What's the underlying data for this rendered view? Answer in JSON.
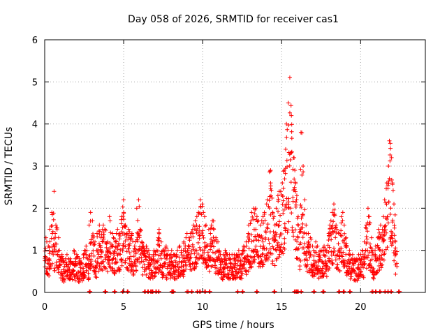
{
  "chart_data": {
    "type": "scatter",
    "title": "Day 058 of 2026, SRMTID for receiver cas1",
    "xlabel": "GPS time / hours",
    "ylabel": "SRMTID / TECUs",
    "xlim": [
      0,
      24.1
    ],
    "ylim": [
      0,
      6
    ],
    "x_ticks": [
      0,
      5,
      10,
      15,
      20
    ],
    "x_tick_labels": [
      "0",
      "5",
      "10",
      "15",
      "20"
    ],
    "y_ticks": [
      0,
      1,
      2,
      3,
      4,
      5,
      6
    ],
    "y_tick_labels": [
      "0",
      "1",
      "2",
      "3",
      "4",
      "5",
      "6"
    ],
    "grid": true,
    "marker": "+",
    "series_color": "#ff0000",
    "series": [
      {
        "name": "cas1",
        "hour_start": 0.0,
        "hour_step": 0.1,
        "envelope": [
          1.3,
          1.2,
          1.1,
          1.5,
          1.9,
          2.4,
          1.4,
          1.6,
          1.3,
          1.0,
          0.9,
          0.8,
          0.7,
          0.8,
          0.9,
          0.8,
          0.8,
          0.7,
          1.0,
          0.8,
          0.9,
          0.7,
          0.8,
          0.7,
          0.9,
          1.0,
          1.1,
          0.8,
          1.6,
          1.9,
          1.7,
          1.2,
          1.0,
          1.4,
          1.6,
          1.3,
          1.5,
          1.6,
          1.5,
          1.2,
          1.8,
          1.7,
          1.4,
          1.3,
          1.2,
          1.4,
          1.5,
          1.4,
          1.8,
          2.2,
          1.9,
          1.6,
          1.4,
          1.5,
          1.3,
          1.4,
          1.1,
          1.2,
          2.0,
          2.2,
          1.5,
          1.2,
          1.1,
          1.0,
          1.1,
          1.0,
          0.9,
          0.8,
          0.9,
          1.0,
          1.0,
          1.3,
          1.5,
          1.2,
          1.0,
          1.0,
          1.1,
          0.9,
          1.0,
          0.9,
          1.0,
          0.9,
          0.9,
          0.9,
          1.0,
          1.1,
          1.0,
          1.0,
          1.2,
          1.3,
          1.4,
          1.3,
          1.4,
          1.5,
          1.6,
          1.7,
          1.8,
          1.9,
          2.2,
          2.1,
          1.9,
          1.8,
          1.6,
          1.5,
          1.4,
          1.6,
          1.7,
          1.5,
          1.3,
          1.2,
          1.0,
          0.9,
          0.8,
          0.9,
          1.0,
          0.9,
          0.9,
          0.8,
          0.9,
          0.9,
          0.8,
          0.9,
          1.0,
          0.9,
          0.9,
          1.0,
          1.1,
          1.2,
          1.4,
          1.6,
          1.7,
          1.9,
          2.0,
          2.0,
          1.8,
          1.7,
          1.6,
          1.7,
          1.8,
          1.9,
          2.1,
          2.2,
          2.9,
          2.6,
          1.9,
          1.8,
          2.0,
          2.3,
          2.4,
          2.4,
          2.6,
          2.9,
          3.4,
          4.0,
          4.5,
          5.1,
          4.2,
          3.2,
          2.9,
          2.3,
          1.8,
          1.5,
          3.8,
          3.0,
          2.2,
          1.6,
          1.4,
          1.2,
          1.3,
          1.1,
          1.0,
          1.2,
          1.1,
          0.9,
          1.0,
          1.0,
          1.1,
          1.0,
          1.0,
          1.4,
          1.6,
          1.7,
          1.9,
          2.1,
          1.6,
          1.5,
          1.4,
          1.8,
          1.9,
          1.6,
          1.3,
          1.1,
          1.0,
          0.9,
          0.9,
          0.8,
          0.8,
          0.8,
          0.9,
          0.8,
          0.9,
          1.0,
          1.2,
          1.6,
          2.0,
          1.8,
          1.3,
          1.0,
          0.9,
          1.1,
          1.3,
          1.5,
          1.6,
          1.5,
          1.8,
          2.2,
          2.6,
          3.0,
          3.6,
          3.2,
          2.6,
          2.1,
          1.2
        ]
      }
    ],
    "zero_cluster_hours": [
      2.8,
      3.8,
      4.4,
      4.9,
      5.2,
      6.3,
      6.5,
      6.7,
      6.8,
      7.0,
      7.2,
      8.0,
      8.1,
      9.0,
      9.3,
      9.6,
      9.8,
      10.1,
      10.4,
      12.2,
      12.5,
      13.4,
      14.5,
      15.8,
      15.9,
      16.0,
      16.2,
      17.0,
      17.6,
      18.6,
      18.9,
      19.3,
      20.7,
      20.9,
      21.2,
      21.5,
      21.7,
      21.9,
      22.4
    ]
  }
}
